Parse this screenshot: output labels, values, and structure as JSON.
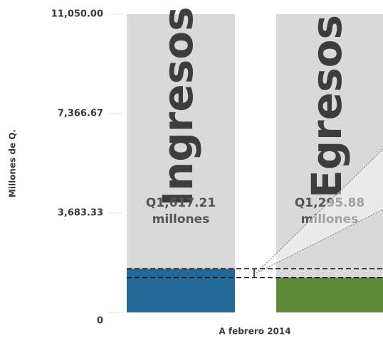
{
  "chart_data": {
    "type": "bar",
    "categories": [
      "Ingresos",
      "Egresos"
    ],
    "values": [
      1617.21,
      1295.88
    ],
    "value_labels": [
      "Q1,617.21",
      "Q1,295.88"
    ],
    "value_label_unit": "millones",
    "colors": [
      "#236a96",
      "#5f8a3a"
    ],
    "ylabel": "Millones de Q.",
    "xlabel": "A febrero 2014",
    "ylim": [
      0,
      11050
    ],
    "yticks": [
      0,
      {
        "value": 3683.33,
        "label": "3,683.33"
      },
      {
        "value": 7366.67,
        "label": "7,366.67"
      },
      {
        "value": 11050,
        "label": "11,050.00"
      }
    ]
  }
}
